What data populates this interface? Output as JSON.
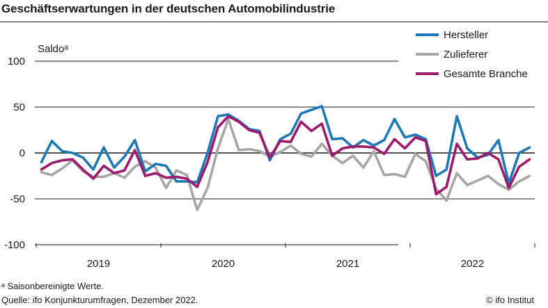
{
  "header": {
    "title": "Geschäftserwartungen in der deutschen Automobilindustrie"
  },
  "footer": {
    "footnote": "ᵃ Saisonbereinigte Werte.",
    "source": "Quelle: ifo Konjunkturumfragen, Dezember 2022.",
    "copyright": "© ifo Institut"
  },
  "colors": {
    "hersteller": "#1f78b4",
    "zulieferer": "#a6a6a6",
    "gesamt": "#9c1a6b",
    "grid": "#1a1a1a"
  },
  "chart_data": {
    "type": "line",
    "ylabel": "Saldoᵃ",
    "ylim": [
      -100,
      100
    ],
    "yticks": [
      100,
      50,
      0,
      -50,
      -100
    ],
    "grid": true,
    "legend_position": "top-right",
    "period_labels": [
      "2019",
      "2020",
      "2021",
      "2022"
    ],
    "x": [
      "2019-01",
      "2019-02",
      "2019-03",
      "2019-04",
      "2019-05",
      "2019-06",
      "2019-07",
      "2019-08",
      "2019-09",
      "2019-10",
      "2019-11",
      "2019-12",
      "2020-01",
      "2020-02",
      "2020-03",
      "2020-04",
      "2020-05",
      "2020-06",
      "2020-07",
      "2020-08",
      "2020-09",
      "2020-10",
      "2020-11",
      "2020-12",
      "2021-01",
      "2021-02",
      "2021-03",
      "2021-04",
      "2021-05",
      "2021-06",
      "2021-07",
      "2021-08",
      "2021-09",
      "2021-10",
      "2021-11",
      "2021-12",
      "2022-01",
      "2022-02",
      "2022-03",
      "2022-04",
      "2022-05",
      "2022-06",
      "2022-07",
      "2022-08",
      "2022-09",
      "2022-10",
      "2022-11",
      "2022-12"
    ],
    "series": [
      {
        "name": "Hersteller",
        "color": "#1f78b4",
        "values": [
          -10,
          13,
          2,
          0,
          -5,
          -18,
          6,
          -16,
          -4,
          14,
          -20,
          -12,
          -14,
          -31,
          -31,
          -32,
          0,
          40,
          42,
          35,
          26,
          24,
          -8,
          15,
          21,
          43,
          47,
          51,
          15,
          16,
          6,
          14,
          8,
          14,
          37,
          17,
          20,
          15,
          -25,
          -18,
          40,
          5,
          -5,
          -2,
          14,
          -33,
          0,
          6
        ]
      },
      {
        "name": "Zulieferer",
        "color": "#a6a6a6",
        "values": [
          -21,
          -24,
          -17,
          -8,
          -20,
          -26,
          -26,
          -22,
          -27,
          -15,
          -9,
          -16,
          -38,
          -19,
          -24,
          -62,
          -38,
          5,
          37,
          3,
          4,
          2,
          -4,
          1,
          8,
          -1,
          -4,
          10,
          -3,
          -11,
          -3,
          -16,
          2,
          -24,
          -23,
          -26,
          -1,
          -9,
          -39,
          -52,
          -22,
          -35,
          -30,
          -25,
          -34,
          -40,
          -31,
          -25
        ]
      },
      {
        "name": "Gesamte Branche",
        "color": "#9c1a6b",
        "values": [
          -18,
          -11,
          -8,
          -7,
          -18,
          -28,
          -14,
          -22,
          -19,
          3,
          -25,
          -22,
          -27,
          -26,
          -28,
          -37,
          -10,
          28,
          40,
          34,
          25,
          22,
          -5,
          13,
          12,
          34,
          24,
          32,
          -3,
          5,
          7,
          7,
          6,
          -1,
          15,
          5,
          17,
          13,
          -45,
          -37,
          10,
          -7,
          -6,
          0,
          -7,
          -38,
          -15,
          -7
        ]
      }
    ]
  }
}
